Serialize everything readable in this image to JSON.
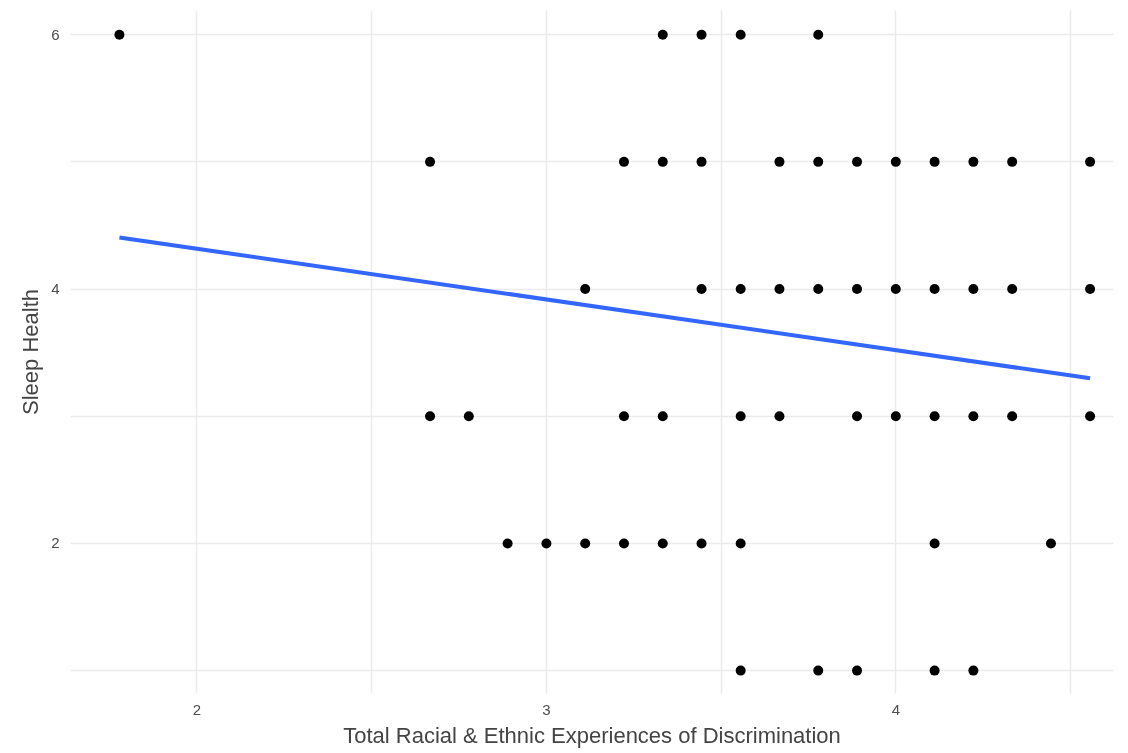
{
  "chart_data": {
    "type": "scatter",
    "xlabel": "Total Racial & Ethnic Experiences of Discrimination",
    "ylabel": "Sleep Health",
    "xlim": [
      1.638,
      4.623
    ],
    "ylim": [
      0.82,
      6.19
    ],
    "xticks": [
      2,
      {
        "value": 2.5,
        "label": null
      },
      3,
      {
        "value": 3.5,
        "label": null
      },
      4,
      {
        "value": 4.5,
        "label": null
      }
    ],
    "yticks": [
      {
        "value": 1,
        "label": null
      },
      2,
      {
        "value": 3,
        "label": null
      },
      4,
      {
        "value": 5,
        "label": null
      },
      6
    ],
    "grid": true,
    "series": [
      {
        "marker": "circle",
        "color": "#000000",
        "x": [
          1.778,
          3.333,
          3.444,
          3.556,
          3.778,
          2.667,
          3.222,
          3.333,
          3.444,
          3.667,
          3.778,
          3.889,
          4.0,
          4.111,
          4.222,
          4.333,
          4.556,
          3.111,
          3.444,
          3.556,
          3.667,
          3.778,
          3.889,
          4.0,
          4.111,
          4.222,
          4.333,
          4.556,
          2.667,
          2.778,
          3.222,
          3.333,
          3.556,
          3.667,
          3.889,
          4.0,
          4.111,
          4.222,
          4.333,
          4.556,
          2.889,
          3.0,
          3.111,
          3.222,
          3.333,
          3.444,
          3.556,
          4.111,
          4.444,
          3.556,
          3.778,
          3.889,
          4.111,
          4.222
        ],
        "values": [
          6,
          6,
          6,
          6,
          6,
          5,
          5,
          5,
          5,
          5,
          5,
          5,
          5,
          5,
          5,
          5,
          5,
          4,
          4,
          4,
          4,
          4,
          4,
          4,
          4,
          4,
          4,
          4,
          3,
          3,
          3,
          3,
          3,
          3,
          3,
          3,
          3,
          3,
          3,
          3,
          2,
          2,
          2,
          2,
          2,
          2,
          2,
          2,
          2,
          1,
          1,
          1,
          1,
          1
        ]
      },
      {
        "type": "line",
        "color": "#3366ff",
        "x": [
          1.778,
          4.556
        ],
        "values": [
          4.405,
          3.298
        ],
        "line_style": "solid"
      }
    ]
  }
}
